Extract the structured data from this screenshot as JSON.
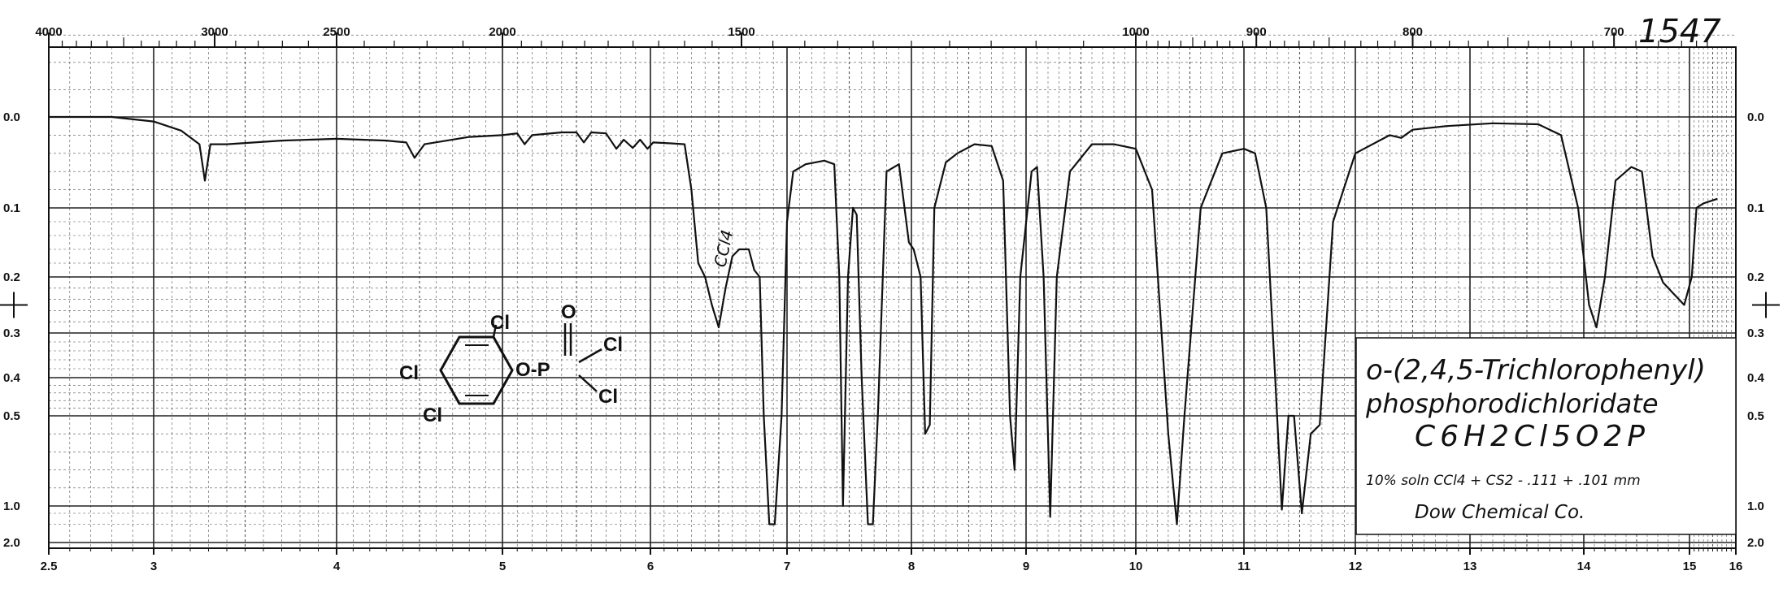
{
  "chart_data": {
    "type": "line",
    "title": "1547",
    "compound": {
      "name_line1": "o-(2,4,5-Trichlorophenyl)",
      "name_line2": "phosphorodichloridate",
      "formula": "C6H2Cl5O2P",
      "conditions": "10% soln CCl4 + CS2 - .111 + .101 mm",
      "source": "Dow Chemical Co."
    },
    "structure_labels": {
      "cl_top": "Cl",
      "cl_left": "Cl",
      "cl_bottom": "Cl",
      "o_link": "O-P",
      "o_double": "O",
      "cl_p1": "Cl",
      "cl_p2": "Cl"
    },
    "solvent_note": "CCl4",
    "xlabel": "",
    "ylabel": "",
    "x_axis_bottom": {
      "unit": "microns",
      "range": [
        2.5,
        16
      ],
      "ticks": [
        2.5,
        3,
        4,
        5,
        6,
        7,
        8,
        9,
        10,
        11,
        12,
        13,
        14,
        15,
        16
      ],
      "tick_labels": [
        "2.5",
        "3",
        "4",
        "5",
        "6",
        "7",
        "8",
        "9",
        "10",
        "11",
        "12",
        "13",
        "14",
        "15",
        "16"
      ]
    },
    "x_axis_top": {
      "unit": "cm-1",
      "ticks": [
        4000,
        3000,
        2500,
        2000,
        1500,
        1000,
        900,
        800,
        700
      ],
      "tick_labels": [
        "4000",
        "3000",
        "2500",
        "2000",
        "1500",
        "1000",
        "900",
        "800",
        "700"
      ]
    },
    "y_axis": {
      "scale": "absorbance",
      "ticks": [
        0.0,
        0.1,
        0.2,
        0.3,
        0.4,
        0.5,
        1.0,
        2.0
      ],
      "tick_labels": [
        "0.0",
        "0.1",
        "0.2",
        "0.3",
        "0.4",
        "0.5",
        "1.0",
        "2.0"
      ]
    },
    "grid": true,
    "series": [
      {
        "points": [
          [
            2.5,
            0.0
          ],
          [
            2.8,
            0.0
          ],
          [
            3.0,
            0.005
          ],
          [
            3.15,
            0.015
          ],
          [
            3.25,
            0.03
          ],
          [
            3.28,
            0.07
          ],
          [
            3.31,
            0.03
          ],
          [
            3.4,
            0.03
          ],
          [
            3.7,
            0.026
          ],
          [
            4.0,
            0.024
          ],
          [
            4.3,
            0.026
          ],
          [
            4.42,
            0.028
          ],
          [
            4.47,
            0.045
          ],
          [
            4.53,
            0.03
          ],
          [
            4.8,
            0.022
          ],
          [
            5.0,
            0.02
          ],
          [
            5.1,
            0.018
          ],
          [
            5.15,
            0.03
          ],
          [
            5.2,
            0.02
          ],
          [
            5.4,
            0.017
          ],
          [
            5.5,
            0.017
          ],
          [
            5.55,
            0.028
          ],
          [
            5.6,
            0.017
          ],
          [
            5.7,
            0.018
          ],
          [
            5.77,
            0.035
          ],
          [
            5.82,
            0.025
          ],
          [
            5.88,
            0.034
          ],
          [
            5.93,
            0.025
          ],
          [
            5.98,
            0.035
          ],
          [
            6.02,
            0.028
          ],
          [
            6.15,
            0.029
          ],
          [
            6.25,
            0.03
          ],
          [
            6.3,
            0.08
          ],
          [
            6.35,
            0.18
          ],
          [
            6.4,
            0.2
          ],
          [
            6.45,
            0.25
          ],
          [
            6.5,
            0.29
          ],
          [
            6.55,
            0.22
          ],
          [
            6.6,
            0.17
          ],
          [
            6.65,
            0.16
          ],
          [
            6.72,
            0.16
          ],
          [
            6.76,
            0.19
          ],
          [
            6.8,
            0.2
          ],
          [
            6.83,
            0.5
          ],
          [
            6.87,
            1.5
          ],
          [
            6.91,
            1.5
          ],
          [
            6.96,
            0.5
          ],
          [
            7.0,
            0.12
          ],
          [
            7.05,
            0.06
          ],
          [
            7.15,
            0.052
          ],
          [
            7.3,
            0.048
          ],
          [
            7.38,
            0.052
          ],
          [
            7.42,
            0.2
          ],
          [
            7.45,
            1.0
          ],
          [
            7.49,
            0.2
          ],
          [
            7.53,
            0.1
          ],
          [
            7.56,
            0.11
          ],
          [
            7.6,
            0.4
          ],
          [
            7.65,
            1.5
          ],
          [
            7.69,
            1.5
          ],
          [
            7.73,
            0.5
          ],
          [
            7.8,
            0.06
          ],
          [
            7.9,
            0.052
          ],
          [
            7.98,
            0.15
          ],
          [
            8.02,
            0.16
          ],
          [
            8.08,
            0.2
          ],
          [
            8.12,
            0.6
          ],
          [
            8.16,
            0.55
          ],
          [
            8.2,
            0.1
          ],
          [
            8.3,
            0.05
          ],
          [
            8.4,
            0.04
          ],
          [
            8.55,
            0.03
          ],
          [
            8.7,
            0.032
          ],
          [
            8.8,
            0.07
          ],
          [
            8.86,
            0.5
          ],
          [
            8.9,
            0.8
          ],
          [
            8.95,
            0.2
          ],
          [
            9.05,
            0.06
          ],
          [
            9.1,
            0.055
          ],
          [
            9.16,
            0.2
          ],
          [
            9.22,
            1.3
          ],
          [
            9.28,
            0.2
          ],
          [
            9.4,
            0.06
          ],
          [
            9.6,
            0.03
          ],
          [
            9.8,
            0.03
          ],
          [
            10.0,
            0.035
          ],
          [
            10.15,
            0.08
          ],
          [
            10.3,
            0.6
          ],
          [
            10.38,
            1.5
          ],
          [
            10.45,
            0.5
          ],
          [
            10.6,
            0.1
          ],
          [
            10.8,
            0.04
          ],
          [
            11.0,
            0.035
          ],
          [
            11.1,
            0.04
          ],
          [
            11.2,
            0.1
          ],
          [
            11.28,
            0.4
          ],
          [
            11.34,
            1.1
          ],
          [
            11.4,
            0.5
          ],
          [
            11.45,
            0.5
          ],
          [
            11.52,
            1.2
          ],
          [
            11.6,
            0.6
          ],
          [
            11.68,
            0.55
          ],
          [
            11.8,
            0.12
          ],
          [
            12.0,
            0.04
          ],
          [
            12.3,
            0.02
          ],
          [
            12.4,
            0.023
          ],
          [
            12.5,
            0.014
          ],
          [
            12.8,
            0.01
          ],
          [
            13.2,
            0.007
          ],
          [
            13.6,
            0.008
          ],
          [
            13.8,
            0.02
          ],
          [
            13.95,
            0.1
          ],
          [
            14.05,
            0.25
          ],
          [
            14.12,
            0.29
          ],
          [
            14.2,
            0.2
          ],
          [
            14.3,
            0.07
          ],
          [
            14.45,
            0.055
          ],
          [
            14.55,
            0.06
          ],
          [
            14.65,
            0.17
          ],
          [
            14.75,
            0.21
          ],
          [
            14.85,
            0.23
          ],
          [
            14.95,
            0.25
          ],
          [
            15.05,
            0.2
          ],
          [
            15.15,
            0.1
          ],
          [
            15.3,
            0.095
          ],
          [
            15.6,
            0.09
          ]
        ]
      }
    ]
  }
}
